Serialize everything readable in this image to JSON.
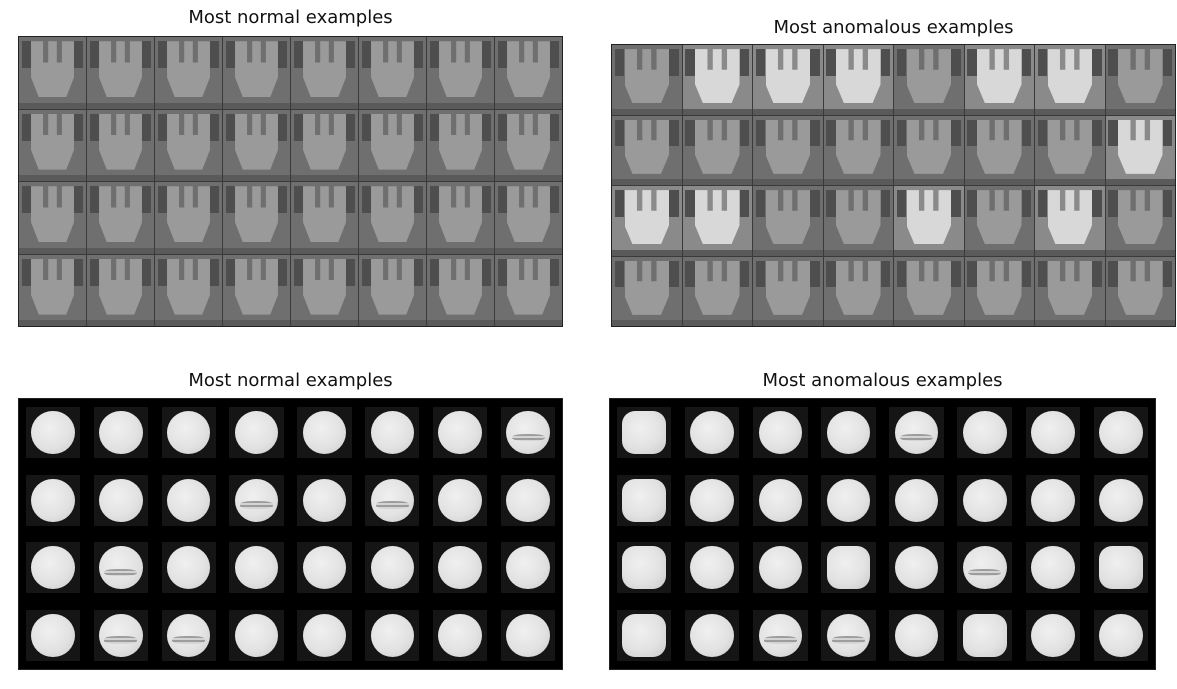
{
  "panels": [
    {
      "id": "top-left",
      "title": "Most normal examples",
      "kind": "part",
      "variant": "normal"
    },
    {
      "id": "top-right",
      "title": "Most anomalous examples",
      "kind": "part",
      "variant": "anomalous"
    },
    {
      "id": "bottom-left",
      "title": "Most normal examples",
      "kind": "pill",
      "variant": "normal"
    },
    {
      "id": "bottom-right",
      "title": "Most anomalous examples",
      "kind": "pill",
      "variant": "anomalous"
    }
  ],
  "grid": {
    "rows": 4,
    "cols": 8
  },
  "colors": {
    "part_normal_bg": "#6f6f6f",
    "part_normal_shape": "#9a9a9a",
    "part_normal_tab": "#4e4e4e",
    "part_bright_shape": "#d8d8d8",
    "pill_bg": "#000000",
    "pill_disc": "#e4e4e4"
  },
  "anomalous_parts_bright": [
    1,
    2,
    3,
    5,
    6,
    15,
    16,
    17,
    20,
    22
  ],
  "normal_pills_defect": [
    7,
    11,
    13,
    17,
    25,
    26
  ],
  "anomalous_pills_defect": [
    4,
    21,
    26,
    27
  ],
  "anomalous_pills_squarish": [
    0,
    8,
    16,
    19,
    23,
    24,
    29
  ]
}
